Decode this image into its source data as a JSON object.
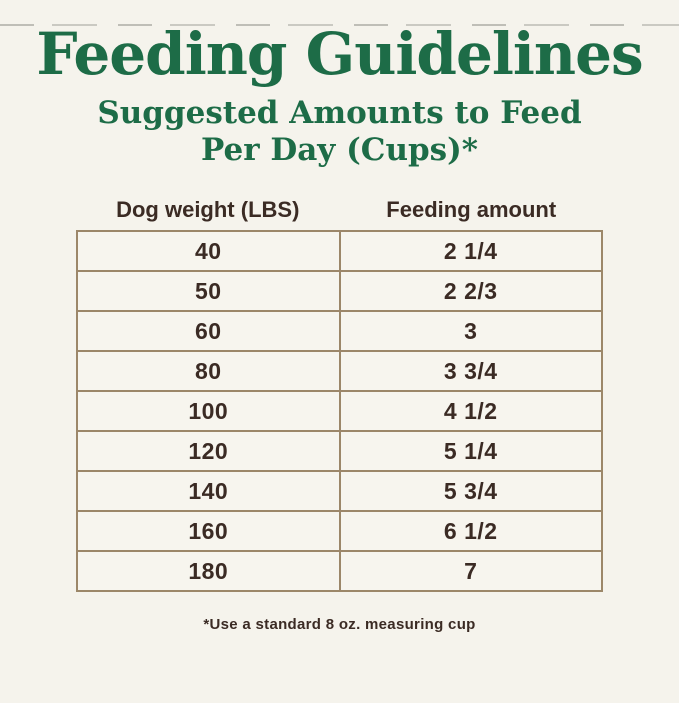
{
  "page": {
    "title": "Feeding Guidelines",
    "subtitle_lines": [
      "Suggested Amounts to Feed",
      "Per Day (Cups)*"
    ],
    "footnote": "*Use a standard 8 oz. measuring cup"
  },
  "table": {
    "columns": [
      "Dog weight (LBS)",
      "Feeding amount"
    ],
    "rows": [
      {
        "weight": "40",
        "amount": "2 1/4"
      },
      {
        "weight": "50",
        "amount": "2 2/3"
      },
      {
        "weight": "60",
        "amount": "3"
      },
      {
        "weight": "80",
        "amount": "3 3/4"
      },
      {
        "weight": "100",
        "amount": "4 1/2"
      },
      {
        "weight": "120",
        "amount": "5 1/4"
      },
      {
        "weight": "140",
        "amount": "5 3/4"
      },
      {
        "weight": "160",
        "amount": "6 1/2"
      },
      {
        "weight": "180",
        "amount": "7"
      }
    ]
  },
  "colors": {
    "background": "#f5f3ec",
    "heading_green": "#1d6c47",
    "text_brown": "#3b2b24",
    "border_tan": "#9c8769",
    "row_bg": "#f7f5ee"
  }
}
